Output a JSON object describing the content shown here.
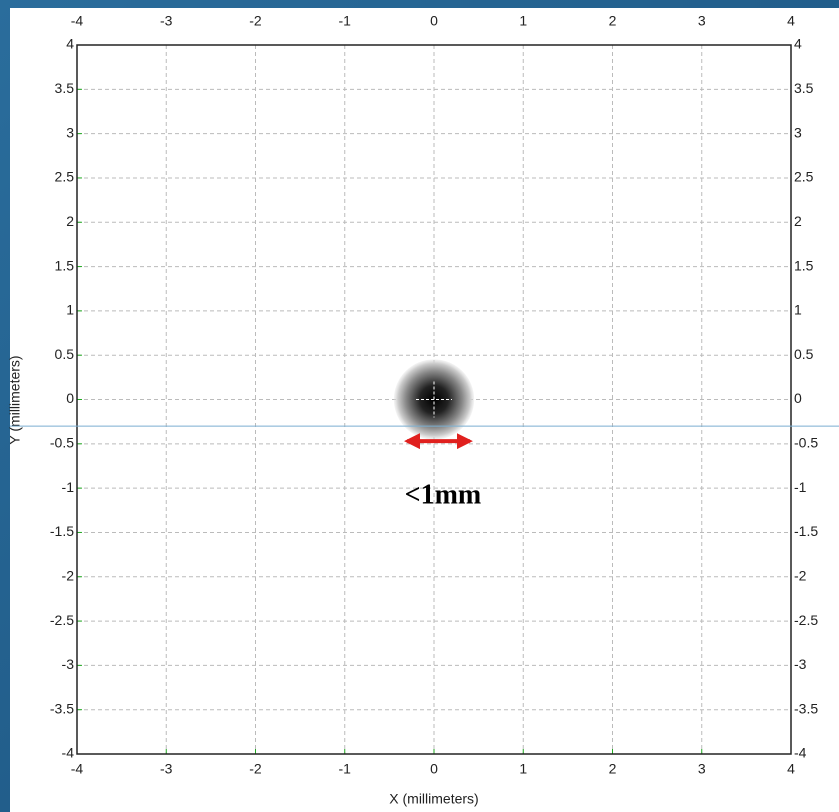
{
  "chart_data": {
    "type": "spot",
    "x_label": "X (millimeters)",
    "y_label": "Y (millimeters)",
    "xlim": [
      -4,
      4
    ],
    "ylim": [
      -4,
      4
    ],
    "xticks": [
      -4,
      -3,
      -2,
      -1,
      0,
      1,
      2,
      3,
      4
    ],
    "yticks": [
      -4,
      -3.5,
      -3,
      -2.5,
      -2,
      -1.5,
      -1,
      -0.5,
      0,
      0.5,
      1,
      1.5,
      2,
      2.5,
      3,
      3.5,
      4
    ],
    "grid": true,
    "spot": {
      "x": 0,
      "y": 0,
      "radius": 0.45
    },
    "cursor_y": -0.3,
    "arrow": {
      "x": [
        -0.3,
        0.4
      ],
      "y": -0.47,
      "color": "#e0201e"
    },
    "annotation": {
      "text": "<1mm",
      "x": 0.1,
      "y": -1.1
    }
  }
}
